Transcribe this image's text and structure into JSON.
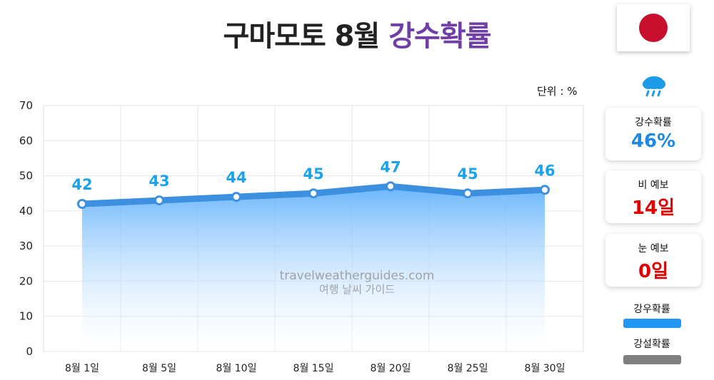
{
  "title": {
    "main": "구마모토 8월",
    "accent": "강수확률"
  },
  "flag": {
    "name": "japan-flag",
    "dot_color": "#c8102e"
  },
  "unit_label": "단위 : %",
  "cards": [
    {
      "label": "강수확률",
      "value": "46%",
      "color": "#1e88e5"
    },
    {
      "label": "비 예보",
      "value": "14일",
      "color": "#e00000"
    },
    {
      "label": "눈 예보",
      "value": "0일",
      "color": "#e00000"
    }
  ],
  "legend": [
    {
      "label": "강우확률",
      "color": "#2196f3"
    },
    {
      "label": "강설확률",
      "color": "#808080"
    }
  ],
  "watermark": {
    "line1": "travelweatherguides.com",
    "line2": "여행 날씨 가이드"
  },
  "colors": {
    "line": "#3d8fe0",
    "point_label": "#1aa3e8",
    "area_top": "#5aaefc",
    "area_bottom": "#ffffff"
  },
  "chart_data": {
    "type": "area",
    "categories": [
      "8월 1일",
      "8월 5일",
      "8월 10일",
      "8월 15일",
      "8월 20일",
      "8월 25일",
      "8월 30일"
    ],
    "series": [
      {
        "name": "강우확률",
        "values": [
          42,
          43,
          44,
          45,
          47,
          45,
          46
        ]
      }
    ],
    "ylim": [
      0,
      70
    ],
    "yticks": [
      0,
      10,
      20,
      30,
      40,
      50,
      60,
      70
    ],
    "grid": true,
    "data_labels": [
      "42",
      "43",
      "44",
      "45",
      "47",
      "45",
      "46"
    ]
  }
}
